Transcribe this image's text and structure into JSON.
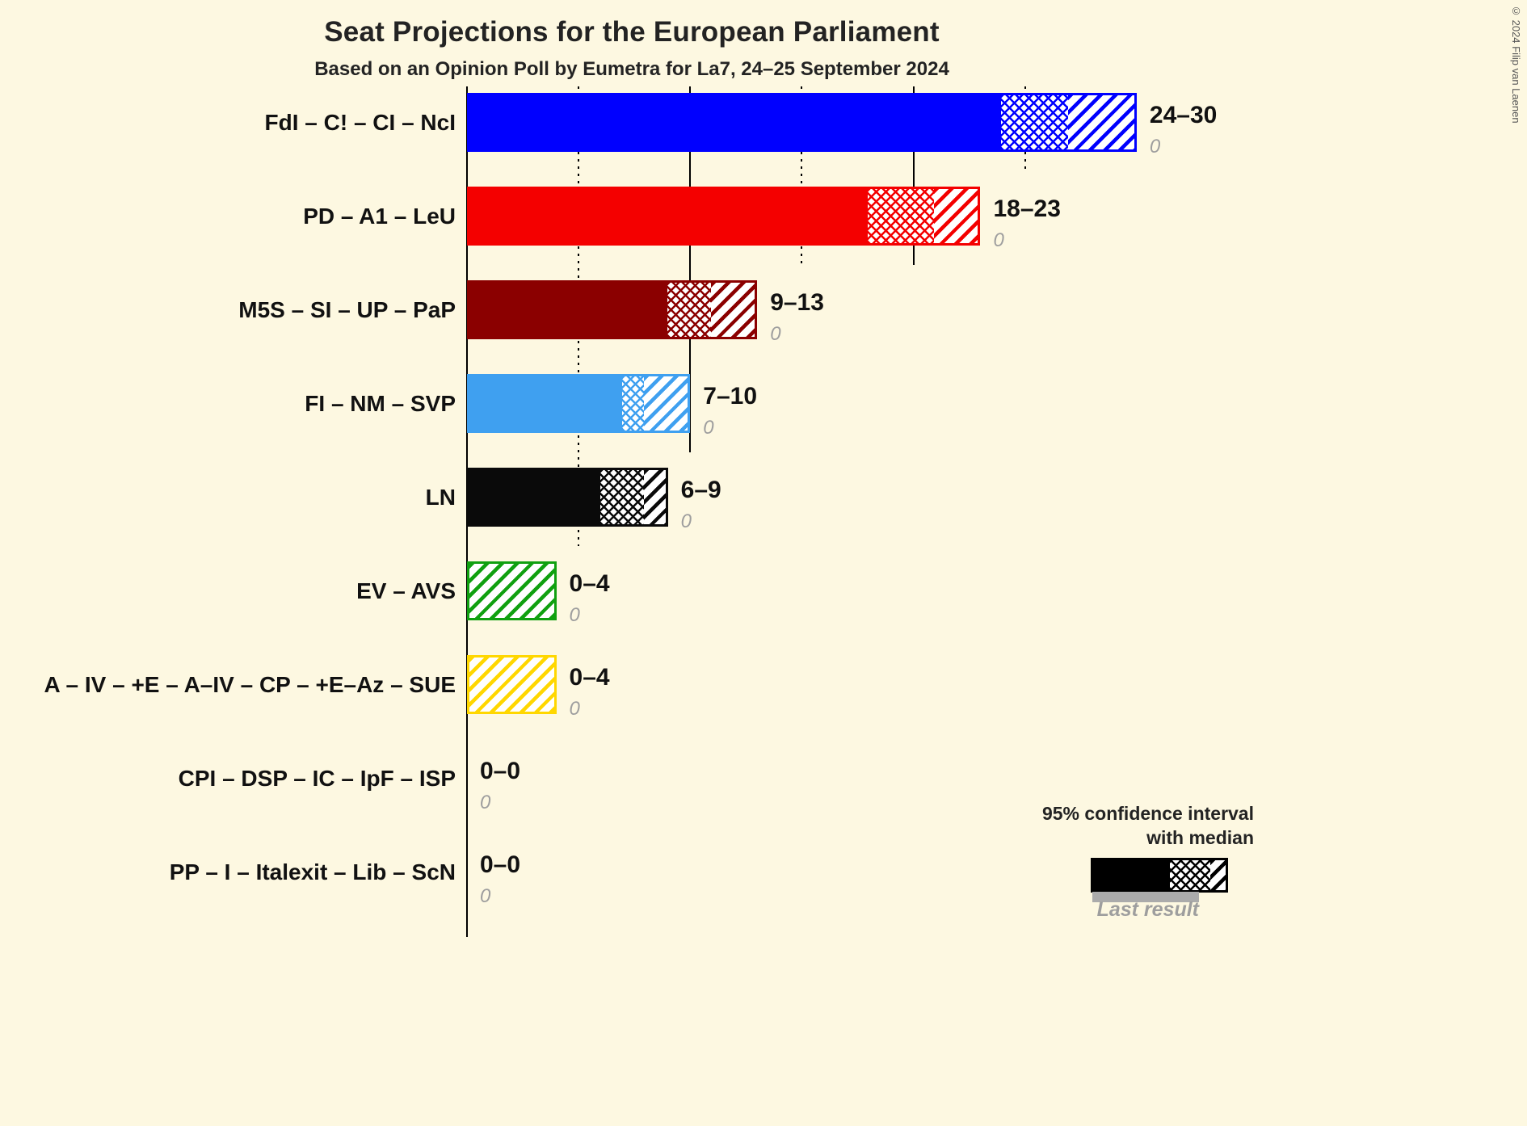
{
  "title": "Seat Projections for the European Parliament",
  "subtitle": "Based on an Opinion Poll by Eumetra for La7, 24–25 September 2024",
  "copyright": "© 2024 Filip van Laenen",
  "legend": {
    "ci_line1": "95% confidence interval",
    "ci_line2": "with median",
    "last_result": "Last result"
  },
  "chart_data": {
    "type": "bar",
    "orientation": "horizontal",
    "x_axis": {
      "min": 0,
      "max": 30,
      "solid_ticks": [
        10,
        20
      ],
      "dotted_ticks": [
        5,
        15,
        25
      ]
    },
    "series": [
      {
        "label": "FdI – C! – CI – NcI",
        "low": 24,
        "median": 27,
        "high": 30,
        "last_result": 0,
        "range_label": "24–30",
        "last_result_label": "0",
        "color": "#0000FF"
      },
      {
        "label": "PD – A1 – LeU",
        "low": 18,
        "median": 21,
        "high": 23,
        "last_result": 0,
        "range_label": "18–23",
        "last_result_label": "0",
        "color": "#F40000"
      },
      {
        "label": "M5S – SI – UP – PaP",
        "low": 9,
        "median": 11,
        "high": 13,
        "last_result": 0,
        "range_label": "9–13",
        "last_result_label": "0",
        "color": "#8B0000"
      },
      {
        "label": "FI – NM – SVP",
        "low": 7,
        "median": 8,
        "high": 10,
        "last_result": 0,
        "range_label": "7–10",
        "last_result_label": "0",
        "color": "#3FA0F0"
      },
      {
        "label": "LN",
        "low": 6,
        "median": 8,
        "high": 9,
        "last_result": 0,
        "range_label": "6–9",
        "last_result_label": "0",
        "color": "#0A0A0A"
      },
      {
        "label": "EV – AVS",
        "low": 0,
        "median": 0,
        "high": 4,
        "last_result": 0,
        "range_label": "0–4",
        "last_result_label": "0",
        "color": "#10A010"
      },
      {
        "label": "A – IV – +E – A–IV – CP – +E–Az – SUE",
        "low": 0,
        "median": 0,
        "high": 4,
        "last_result": 0,
        "range_label": "0–4",
        "last_result_label": "0",
        "color": "#FFD700"
      },
      {
        "label": "CPI – DSP – IC – IpF – ISP",
        "low": 0,
        "median": 0,
        "high": 0,
        "last_result": 0,
        "range_label": "0–0",
        "last_result_label": "0",
        "color": "#777777"
      },
      {
        "label": "PP – I – Italexit – Lib – ScN",
        "low": 0,
        "median": 0,
        "high": 0,
        "last_result": 0,
        "range_label": "0–0",
        "last_result_label": "0",
        "color": "#777777"
      }
    ]
  }
}
